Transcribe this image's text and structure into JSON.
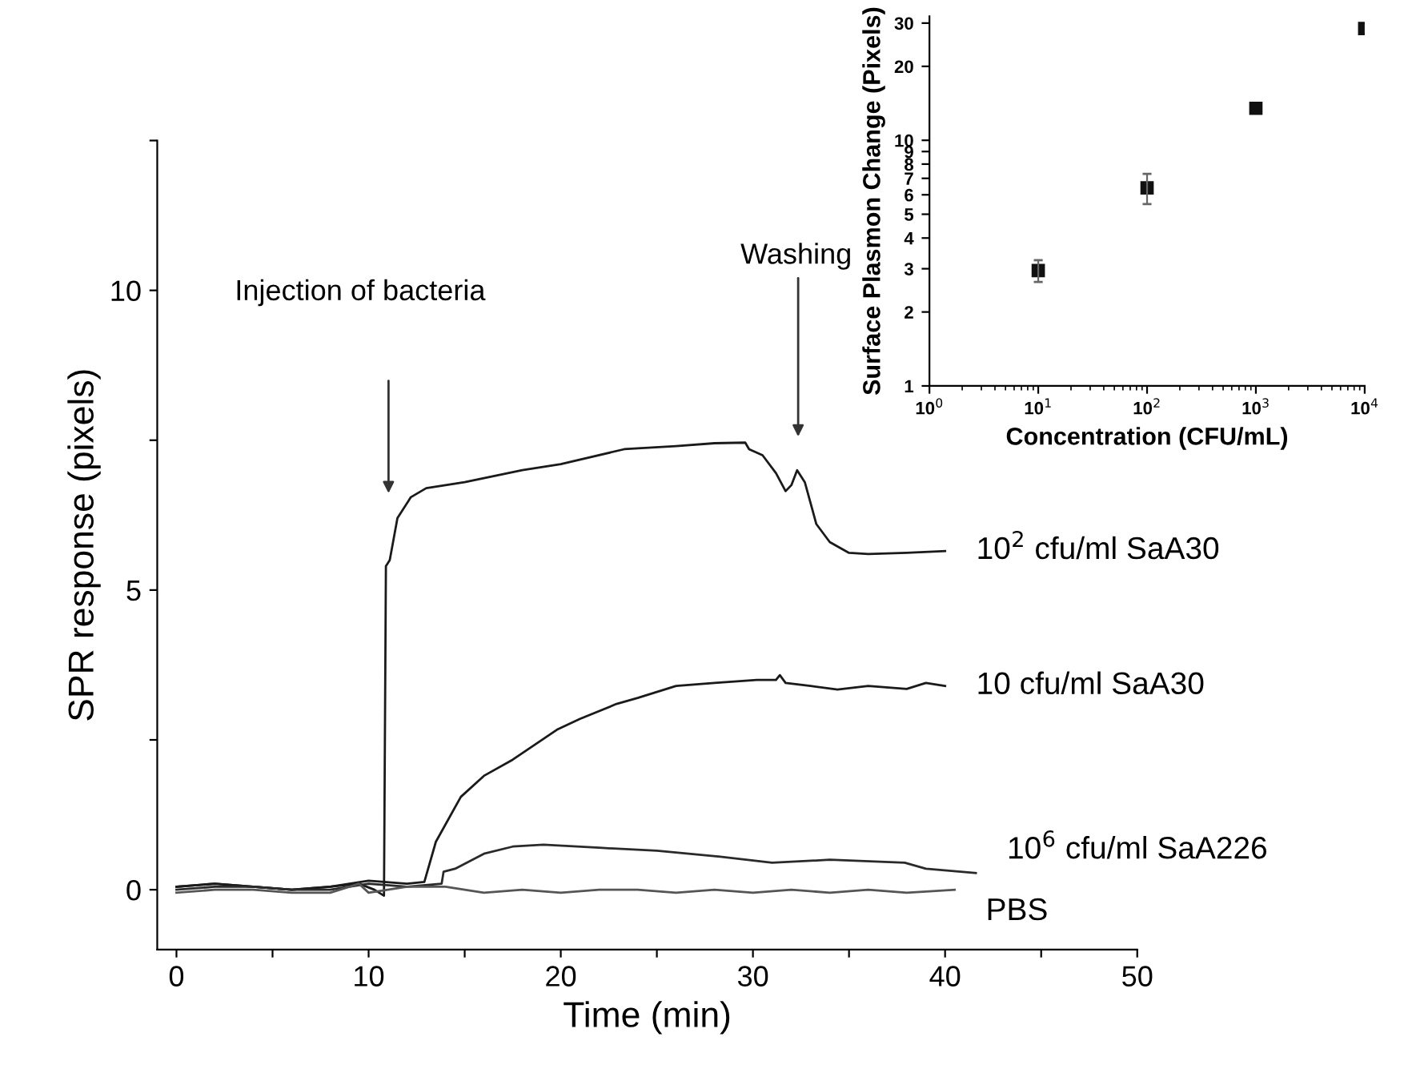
{
  "chart_data": [
    {
      "type": "line",
      "xlabel": "Time (min)",
      "ylabel": "SPR response (pixels)",
      "xlim": [
        -1,
        50
      ],
      "ylim": [
        -1,
        12.5
      ],
      "xticks": [
        0,
        {
          "value": 5,
          "label": null
        },
        10,
        {
          "value": 15,
          "label": null
        },
        20,
        {
          "value": 25,
          "label": null
        },
        30,
        {
          "value": 35,
          "label": null
        },
        40,
        {
          "value": 45,
          "label": null
        },
        50
      ],
      "yticks": [
        {
          "value": 0,
          "label": "0"
        },
        {
          "value": 2.5,
          "label": null
        },
        5,
        {
          "value": 7.5,
          "label": null
        },
        10,
        {
          "value": 12.5,
          "label": null
        }
      ],
      "series": [
        {
          "name": "10$^{2}$ cfu/ml SaA30",
          "color": "#1a1a1a",
          "x": [
            0,
            2,
            4,
            6,
            8,
            9.5,
            10.3,
            10.8,
            10.9,
            11.1,
            11.5,
            12.2,
            13,
            15,
            18,
            20,
            23.3,
            26,
            28,
            29.6,
            29.8,
            30.5,
            31.2,
            31.7,
            32,
            32.3,
            32.7,
            33.3,
            34,
            35,
            36,
            38,
            40
          ],
          "values": [
            0.05,
            0.1,
            0.05,
            0.0,
            0.05,
            0.1,
            0.0,
            -0.1,
            5.4,
            5.5,
            6.2,
            6.55,
            6.7,
            6.8,
            7.0,
            7.1,
            7.35,
            7.4,
            7.45,
            7.46,
            7.35,
            7.25,
            6.95,
            6.65,
            6.75,
            7.0,
            6.8,
            6.1,
            5.8,
            5.62,
            5.6,
            5.62,
            5.65
          ]
        },
        {
          "name": "10 cfu/ml SaA30",
          "color": "#1a1a1a",
          "x": [
            0,
            2,
            4,
            6,
            8,
            10,
            12,
            12.9,
            13.5,
            14.8,
            16,
            17.5,
            19.8,
            21,
            22.9,
            24,
            26,
            28,
            30.2,
            31.2,
            31.4,
            31.7,
            33,
            34.4,
            36,
            38,
            39,
            40
          ],
          "values": [
            0.05,
            0.1,
            0.05,
            0.0,
            0.05,
            0.15,
            0.1,
            0.13,
            0.8,
            1.55,
            1.9,
            2.17,
            2.67,
            2.85,
            3.1,
            3.2,
            3.4,
            3.45,
            3.5,
            3.5,
            3.58,
            3.45,
            3.4,
            3.34,
            3.4,
            3.35,
            3.45,
            3.4
          ]
        },
        {
          "name": "10$^{6}$ cfu/ml SaA226",
          "color": "#2a2a2a",
          "x": [
            0,
            2,
            4,
            6,
            8,
            10,
            12,
            13.8,
            13.9,
            14.5,
            16,
            17.5,
            19.1,
            22,
            25,
            28.3,
            31,
            34,
            37.9,
            39,
            41.6
          ],
          "values": [
            0.0,
            0.05,
            0.05,
            0.0,
            0.0,
            0.1,
            0.05,
            0.1,
            0.3,
            0.35,
            0.6,
            0.72,
            0.75,
            0.7,
            0.65,
            0.55,
            0.45,
            0.5,
            0.45,
            0.35,
            0.28
          ]
        },
        {
          "name": "PBS",
          "color": "#555555",
          "x": [
            0,
            2,
            4,
            6,
            8,
            9.5,
            10,
            12,
            14,
            16,
            18,
            20,
            22,
            24,
            26,
            28,
            30,
            32,
            34,
            36,
            38,
            40.5
          ],
          "values": [
            -0.05,
            0.0,
            0.0,
            -0.05,
            -0.05,
            0.1,
            -0.05,
            0.05,
            0.05,
            -0.05,
            0.0,
            -0.05,
            0.0,
            0.0,
            -0.05,
            0.0,
            -0.05,
            0.0,
            -0.05,
            0.0,
            -0.05,
            0.0
          ]
        }
      ],
      "annotations": [
        "Injection of bacteria",
        "Washing"
      ]
    },
    {
      "type": "scatter",
      "xlabel": "Concentration (CFU/mL)",
      "ylabel": "Surface Plasmon Change (Pixels)",
      "log": "xy",
      "marker": "square",
      "color": "#111111",
      "x": [
        10,
        100,
        1000,
        10000
      ],
      "values": [
        2.95,
        6.4,
        13.5,
        28.5
      ],
      "errors": [
        [
          2.65,
          3.25
        ],
        [
          5.5,
          7.3
        ],
        null,
        null
      ],
      "xlim": [
        1,
        10000
      ],
      "ylim": [
        1,
        32
      ],
      "xticks": [
        {
          "value": 1,
          "label": "10$^{0}$"
        },
        {
          "value": 10,
          "label": "10$^{1}$"
        },
        {
          "value": 100,
          "label": "10$^{2}$"
        },
        {
          "value": 1000,
          "label": "10$^{3}$"
        },
        {
          "value": 10000,
          "label": "10$^{4}$"
        }
      ],
      "yticks": [
        1,
        2,
        3,
        4,
        5,
        6,
        7,
        8,
        9,
        10,
        20,
        30
      ]
    }
  ]
}
